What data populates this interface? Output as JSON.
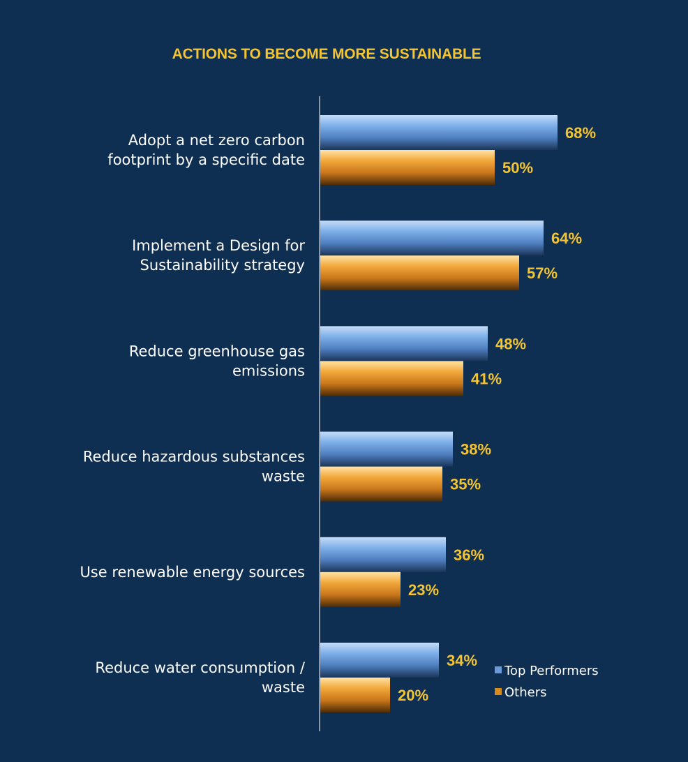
{
  "chart_data": {
    "type": "bar",
    "orientation": "horizontal",
    "title": "ACTIONS TO BECOME MORE SUSTAINABLE",
    "categories": [
      [
        "Adopt a net zero carbon",
        "footprint by a specific date"
      ],
      [
        "Implement a Design for",
        "Sustainability strategy"
      ],
      [
        "Reduce greenhouse gas",
        "emissions"
      ],
      [
        "Reduce hazardous substances",
        "waste"
      ],
      [
        "Use renewable energy sources"
      ],
      [
        "Reduce water consumption /",
        "waste"
      ]
    ],
    "series": [
      {
        "name": "Top Performers",
        "values": [
          68,
          64,
          48,
          38,
          36,
          34
        ],
        "color": "#6a9bd8"
      },
      {
        "name": "Others",
        "values": [
          50,
          57,
          41,
          35,
          23,
          20
        ],
        "color": "#e69a2a"
      }
    ],
    "value_suffix": "%",
    "xlim": [
      0,
      100
    ],
    "grid": false,
    "legend_position": "bottom-right",
    "colors": {
      "background": "#0e2e52",
      "title": "#f5c431",
      "value_labels": "#f5c431",
      "category_labels": "#ffffff",
      "axis": "#8a98aa"
    }
  }
}
